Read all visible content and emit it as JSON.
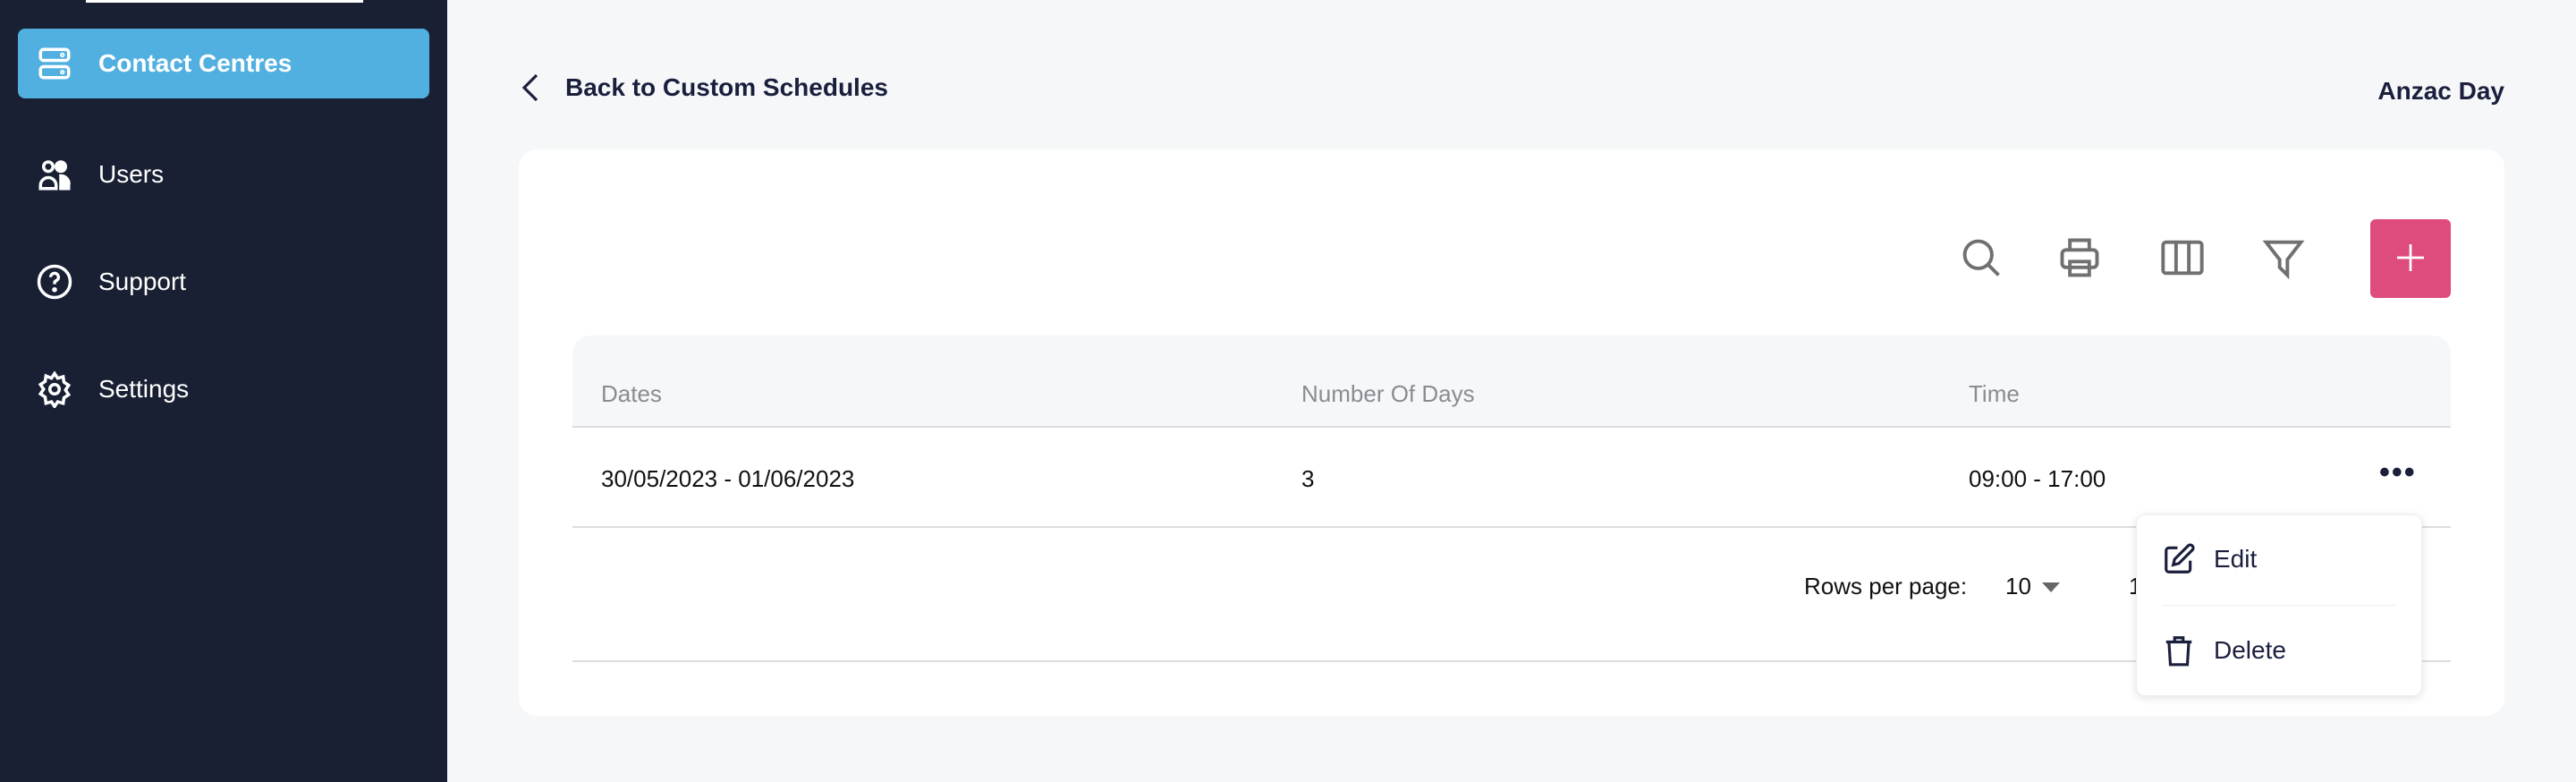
{
  "sidebar": {
    "items": [
      {
        "label": "Contact Centres",
        "icon": "server-icon",
        "active": true
      },
      {
        "label": "Users",
        "icon": "users-icon"
      },
      {
        "label": "Support",
        "icon": "help-circle-icon"
      },
      {
        "label": "Settings",
        "icon": "gear-icon"
      }
    ]
  },
  "header": {
    "back_label": "Back to Custom Schedules",
    "title": "Anzac Day"
  },
  "toolbar": {
    "icons": [
      "search-icon",
      "print-icon",
      "columns-icon",
      "filter-icon"
    ],
    "add_icon": "plus-icon",
    "accent": "#de4c7e"
  },
  "table": {
    "columns": [
      "Dates",
      "Number Of Days",
      "Time"
    ],
    "rows": [
      {
        "dates": "30/05/2023 - 01/06/2023",
        "days": "3",
        "time": "09:00 - 17:00"
      }
    ]
  },
  "pagination": {
    "rows_per_page_label": "Rows per page:",
    "rows_per_page": "10",
    "range": "1"
  },
  "menu": {
    "edit": "Edit",
    "delete": "Delete"
  }
}
